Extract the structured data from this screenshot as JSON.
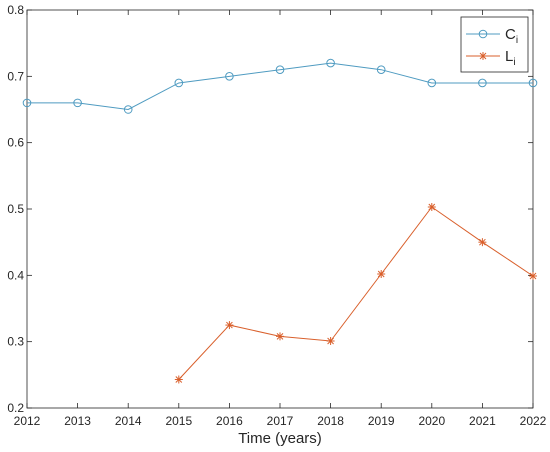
{
  "chart_data": {
    "type": "line",
    "title": "",
    "xlabel": "Time (years)",
    "ylabel": "",
    "xlim": [
      2012,
      2022
    ],
    "ylim": [
      0.2,
      0.8
    ],
    "x_ticks": [
      "2012",
      "2013",
      "2014",
      "2015",
      "2016",
      "2017",
      "2018",
      "2019",
      "2020",
      "2021",
      "2022"
    ],
    "y_ticks": [
      "0.2",
      "0.3",
      "0.4",
      "0.5",
      "0.6",
      "0.7",
      "0.8"
    ],
    "grid": false,
    "legend_position": "top-right",
    "series": [
      {
        "name": "C",
        "name_sub": "i",
        "color": "#4f9bc1",
        "marker": "circle",
        "x": [
          2012,
          2013,
          2014,
          2015,
          2016,
          2017,
          2018,
          2019,
          2020,
          2021,
          2022
        ],
        "y": [
          0.66,
          0.66,
          0.65,
          0.69,
          0.7,
          0.71,
          0.72,
          0.71,
          0.69,
          0.69,
          0.69
        ]
      },
      {
        "name": "L",
        "name_sub": "i",
        "color": "#d95f2b",
        "marker": "asterisk",
        "x": [
          2015,
          2016,
          2017,
          2018,
          2019,
          2020,
          2021,
          2022
        ],
        "y": [
          0.243,
          0.325,
          0.308,
          0.301,
          0.402,
          0.503,
          0.45,
          0.399
        ]
      }
    ]
  }
}
